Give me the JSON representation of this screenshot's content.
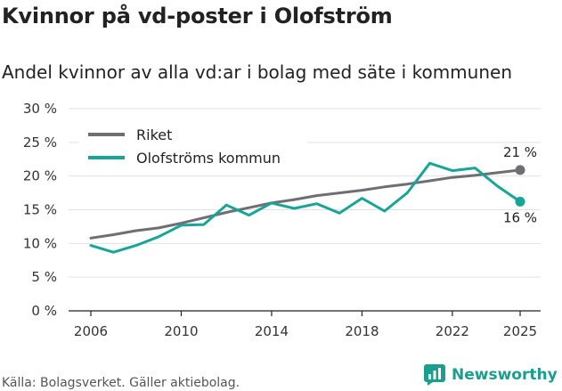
{
  "title": "Kvinnor på vd-poster i Olofström",
  "subtitle": "Andel kvinnor av alla vd:ar i bolag med säte i kommunen",
  "source": "Källa: Bolagsverket. Gäller aktiebolag.",
  "brand": "Newsworthy",
  "colors": {
    "riket": "#6e6e73",
    "olofstrom": "#17a598",
    "brand": "#1a9e8f"
  },
  "chart_data": {
    "type": "line",
    "title": "Kvinnor på vd-poster i Olofström",
    "subtitle": "Andel kvinnor av alla vd:ar i bolag med säte i kommunen",
    "xlabel": "",
    "ylabel": "",
    "xlim": [
      2006,
      2025
    ],
    "ylim": [
      0,
      30
    ],
    "x_ticks": [
      2006,
      2010,
      2014,
      2018,
      2022,
      2025
    ],
    "x_tick_labels": [
      "2006",
      "2010",
      "2014",
      "2018",
      "2022",
      "2025"
    ],
    "y_ticks": [
      0,
      5,
      10,
      15,
      20,
      25,
      30
    ],
    "y_tick_labels": [
      "0 %",
      "5 %",
      "10 %",
      "15 %",
      "20 %",
      "25 %",
      "30 %"
    ],
    "grid": "horizontal",
    "legend": "top-left",
    "x": [
      2006,
      2007,
      2008,
      2009,
      2010,
      2011,
      2012,
      2013,
      2014,
      2015,
      2016,
      2017,
      2018,
      2019,
      2020,
      2021,
      2022,
      2023,
      2024,
      2025
    ],
    "series": [
      {
        "name": "Riket",
        "values": [
          10.8,
          11.3,
          11.9,
          12.3,
          13.0,
          13.8,
          14.6,
          15.3,
          16.0,
          16.5,
          17.1,
          17.5,
          17.9,
          18.4,
          18.8,
          19.3,
          19.8,
          20.1,
          20.5,
          20.9
        ],
        "end_label": "21 %"
      },
      {
        "name": "Olofströms kommun",
        "values": [
          9.7,
          8.7,
          9.7,
          11.0,
          12.7,
          12.8,
          15.7,
          14.2,
          16.0,
          15.2,
          15.9,
          14.5,
          16.7,
          14.8,
          17.5,
          21.9,
          20.8,
          21.2,
          18.5,
          16.2
        ],
        "end_label": "16 %"
      }
    ]
  }
}
